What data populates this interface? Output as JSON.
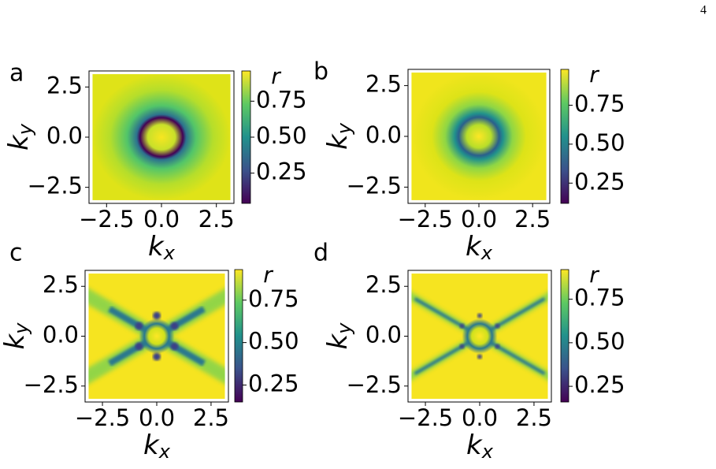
{
  "page_number": "4",
  "chart_data": [
    {
      "type": "heatmap",
      "label": "a",
      "xlabel": {
        "base": "k",
        "sub": "x"
      },
      "ylabel": {
        "base": "k",
        "sub": "y"
      },
      "xlim": [
        -3.3,
        3.3
      ],
      "ylim": [
        -3.3,
        3.3
      ],
      "extent": [
        -3.14,
        3.14
      ],
      "xticks": [
        {
          "value": -2.5,
          "label": "−2.5"
        },
        {
          "value": 0,
          "label": "0.0"
        },
        2.5
      ],
      "yticks": [
        {
          "value": -2.5,
          "label": "−2.5"
        },
        {
          "value": 0,
          "label": "0.0"
        },
        2.5
      ],
      "pattern": "ring",
      "colorbar": {
        "label": "r",
        "lim": [
          0.04,
          0.96
        ],
        "ticks": [
          0.25,
          {
            "value": 0.5,
            "label": "0.50"
          },
          0.75
        ]
      }
    },
    {
      "type": "heatmap",
      "label": "b",
      "xlabel": {
        "base": "k",
        "sub": "x"
      },
      "ylabel": {
        "base": "k",
        "sub": "y"
      },
      "xlim": [
        -3.3,
        3.3
      ],
      "ylim": [
        -3.3,
        3.3
      ],
      "extent": [
        -3.14,
        3.14
      ],
      "xticks": [
        {
          "value": -2.5,
          "label": "−2.5"
        },
        {
          "value": 0,
          "label": "0.0"
        },
        2.5
      ],
      "yticks": [
        {
          "value": -2.5,
          "label": "−2.5"
        },
        {
          "value": 0,
          "label": "0.0"
        },
        2.5
      ],
      "pattern": "hexring",
      "colorbar": {
        "label": "r",
        "lim": [
          0.12,
          0.98
        ],
        "ticks": [
          0.25,
          {
            "value": 0.5,
            "label": "0.50"
          },
          0.75
        ]
      }
    },
    {
      "type": "heatmap",
      "label": "c",
      "xlabel": {
        "base": "k",
        "sub": "x"
      },
      "ylabel": {
        "base": "k",
        "sub": "y"
      },
      "xlim": [
        -3.3,
        3.3
      ],
      "ylim": [
        -3.3,
        3.3
      ],
      "extent": [
        -3.14,
        3.14
      ],
      "xticks": [
        {
          "value": -2.5,
          "label": "−2.5"
        },
        {
          "value": 0,
          "label": "0.0"
        },
        2.5
      ],
      "yticks": [
        {
          "value": -2.5,
          "label": "−2.5"
        },
        {
          "value": 0,
          "label": "0.0"
        },
        2.5
      ],
      "pattern": "star",
      "colorbar": {
        "label": "r",
        "lim": [
          0.15,
          0.93
        ],
        "ticks": [
          0.25,
          {
            "value": 0.5,
            "label": "0.50"
          },
          0.75
        ]
      }
    },
    {
      "type": "heatmap",
      "label": "d",
      "xlabel": {
        "base": "k",
        "sub": "x"
      },
      "ylabel": {
        "base": "k",
        "sub": "y"
      },
      "xlim": [
        -3.3,
        3.3
      ],
      "ylim": [
        -3.3,
        3.3
      ],
      "extent": [
        -3.14,
        3.14
      ],
      "xticks": [
        {
          "value": -2.5,
          "label": "−2.5"
        },
        {
          "value": 0,
          "label": "0.0"
        },
        2.5
      ],
      "yticks": [
        {
          "value": -2.5,
          "label": "−2.5"
        },
        {
          "value": 0,
          "label": "0.0"
        },
        2.5
      ],
      "pattern": "thinstar",
      "colorbar": {
        "label": "r",
        "lim": [
          0.16,
          0.92
        ],
        "ticks": [
          0.25,
          {
            "value": 0.5,
            "label": "0.50"
          },
          0.75
        ]
      }
    }
  ]
}
